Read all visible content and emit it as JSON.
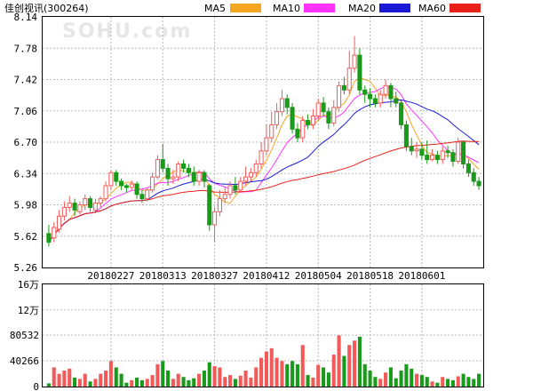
{
  "header": {
    "title": "佳创视讯(300264)",
    "watermark": "SOHU.com",
    "legend": [
      {
        "label": "MA5",
        "color": "#f5a623"
      },
      {
        "label": "MA10",
        "color": "#ff33ff"
      },
      {
        "label": "MA20",
        "color": "#1a1ad6"
      },
      {
        "label": "MA60",
        "color": "#e8211a"
      }
    ]
  },
  "colors": {
    "up": "#f25a5a",
    "down": "#1a9a1a",
    "grid": "#b8b8b8",
    "frame": "#000000"
  },
  "chart_data": {
    "type": "candlestick",
    "price_axis": {
      "ticks": [
        "8.14",
        "7.78",
        "7.42",
        "7.06",
        "6.70",
        "6.34",
        "5.98",
        "5.62",
        "5.26"
      ],
      "ylim": [
        5.26,
        8.14
      ]
    },
    "volume_axis": {
      "ticks": [
        "16万",
        "12万",
        "80532",
        "40266",
        "0"
      ],
      "ylim": [
        0,
        160000
      ]
    },
    "x_labels": [
      "20180227",
      "20180313",
      "20180327",
      "20180412",
      "20180504",
      "20180518",
      "20180601"
    ],
    "x_label_index": [
      12,
      22,
      32,
      42,
      52,
      62,
      72
    ],
    "candles": [
      [
        5.65,
        5.55,
        5.75,
        5.5,
        5000
      ],
      [
        5.6,
        5.72,
        5.78,
        5.55,
        30000
      ],
      [
        5.7,
        5.85,
        5.92,
        5.66,
        20000
      ],
      [
        5.85,
        5.95,
        6.02,
        5.8,
        25000
      ],
      [
        5.95,
        6.0,
        6.08,
        5.9,
        28000
      ],
      [
        6.0,
        5.92,
        6.05,
        5.85,
        14000
      ],
      [
        5.9,
        5.98,
        6.02,
        5.85,
        12000
      ],
      [
        5.98,
        6.05,
        6.1,
        5.92,
        20000
      ],
      [
        6.05,
        5.95,
        6.08,
        5.9,
        8000
      ],
      [
        5.92,
        6.0,
        6.05,
        5.88,
        12000
      ],
      [
        6.0,
        6.05,
        6.08,
        5.95,
        20000
      ],
      [
        6.05,
        6.2,
        6.25,
        6.02,
        25000
      ],
      [
        6.2,
        6.35,
        6.38,
        6.15,
        40000
      ],
      [
        6.35,
        6.25,
        6.38,
        6.2,
        30000
      ],
      [
        6.25,
        6.2,
        6.28,
        6.15,
        20000
      ],
      [
        6.2,
        6.18,
        6.22,
        6.12,
        6000
      ],
      [
        6.18,
        6.22,
        6.26,
        6.15,
        10000
      ],
      [
        6.22,
        6.1,
        6.25,
        6.05,
        14000
      ],
      [
        6.1,
        6.05,
        6.15,
        6.0,
        10000
      ],
      [
        6.05,
        6.15,
        6.18,
        6.02,
        12000
      ],
      [
        6.15,
        6.3,
        6.35,
        6.12,
        18000
      ],
      [
        6.3,
        6.5,
        6.55,
        6.28,
        35000
      ],
      [
        6.5,
        6.4,
        6.68,
        6.35,
        40000
      ],
      [
        6.4,
        6.28,
        6.45,
        6.2,
        25000
      ],
      [
        6.28,
        6.3,
        6.38,
        6.22,
        12000
      ],
      [
        6.3,
        6.45,
        6.48,
        6.25,
        20000
      ],
      [
        6.45,
        6.4,
        6.5,
        6.35,
        15000
      ],
      [
        6.4,
        6.35,
        6.45,
        6.3,
        10000
      ],
      [
        6.35,
        6.25,
        6.42,
        6.2,
        13000
      ],
      [
        6.25,
        6.35,
        6.38,
        6.2,
        20000
      ],
      [
        6.35,
        6.25,
        6.38,
        6.18,
        25000
      ],
      [
        6.2,
        5.75,
        6.22,
        5.68,
        38000
      ],
      [
        5.75,
        5.9,
        5.95,
        5.55,
        32000
      ],
      [
        5.9,
        6.05,
        6.15,
        5.85,
        30000
      ],
      [
        6.05,
        6.1,
        6.18,
        6.0,
        15000
      ],
      [
        6.1,
        6.2,
        6.25,
        6.05,
        18000
      ],
      [
        6.2,
        6.15,
        6.3,
        6.1,
        12000
      ],
      [
        6.15,
        6.25,
        6.3,
        6.12,
        17000
      ],
      [
        6.25,
        6.3,
        6.42,
        6.2,
        25000
      ],
      [
        6.3,
        6.35,
        6.4,
        6.25,
        14000
      ],
      [
        6.35,
        6.45,
        6.5,
        6.3,
        30000
      ],
      [
        6.45,
        6.6,
        6.7,
        6.4,
        45000
      ],
      [
        6.6,
        6.75,
        6.9,
        6.55,
        55000
      ],
      [
        6.75,
        6.9,
        7.05,
        6.7,
        60000
      ],
      [
        6.9,
        7.05,
        7.15,
        6.85,
        45000
      ],
      [
        7.05,
        7.2,
        7.3,
        7.0,
        40000
      ],
      [
        7.2,
        7.1,
        7.25,
        7.02,
        35000
      ],
      [
        7.1,
        6.85,
        7.15,
        6.8,
        40000
      ],
      [
        6.85,
        6.75,
        6.92,
        6.7,
        35000
      ],
      [
        6.75,
        6.95,
        7.0,
        6.7,
        65000
      ],
      [
        6.95,
        6.9,
        7.02,
        6.85,
        18000
      ],
      [
        6.9,
        7.0,
        7.08,
        6.85,
        14000
      ],
      [
        7.0,
        7.15,
        7.2,
        6.95,
        34000
      ],
      [
        7.15,
        7.05,
        7.22,
        7.0,
        30000
      ],
      [
        7.05,
        6.92,
        7.1,
        6.85,
        22000
      ],
      [
        6.92,
        7.1,
        7.18,
        6.88,
        50000
      ],
      [
        7.1,
        7.35,
        7.4,
        7.05,
        80000
      ],
      [
        7.35,
        7.3,
        7.45,
        7.25,
        48000
      ],
      [
        7.3,
        7.55,
        7.75,
        7.25,
        65000
      ],
      [
        7.55,
        7.7,
        7.92,
        7.5,
        72000
      ],
      [
        7.7,
        7.3,
        7.78,
        7.25,
        78000
      ],
      [
        7.3,
        7.25,
        7.35,
        7.15,
        35000
      ],
      [
        7.25,
        7.2,
        7.32,
        7.1,
        25000
      ],
      [
        7.2,
        7.15,
        7.25,
        7.1,
        15000
      ],
      [
        7.15,
        7.25,
        7.3,
        7.1,
        12000
      ],
      [
        7.25,
        7.35,
        7.42,
        7.2,
        22000
      ],
      [
        7.35,
        7.2,
        7.38,
        7.1,
        30000
      ],
      [
        7.2,
        7.15,
        7.28,
        7.1,
        13000
      ],
      [
        7.15,
        6.9,
        7.18,
        6.85,
        25000
      ],
      [
        6.9,
        6.65,
        6.95,
        6.6,
        35000
      ],
      [
        6.65,
        6.6,
        6.75,
        6.55,
        28000
      ],
      [
        6.6,
        6.62,
        6.7,
        6.52,
        20000
      ],
      [
        6.62,
        6.55,
        6.7,
        6.5,
        18000
      ],
      [
        6.55,
        6.5,
        6.72,
        6.45,
        15000
      ],
      [
        6.5,
        6.55,
        6.62,
        6.48,
        8000
      ],
      [
        6.55,
        6.5,
        6.6,
        6.45,
        6000
      ],
      [
        6.5,
        6.6,
        6.65,
        6.45,
        15000
      ],
      [
        6.6,
        6.58,
        6.66,
        6.52,
        12000
      ],
      [
        6.58,
        6.48,
        6.62,
        6.42,
        10000
      ],
      [
        6.48,
        6.7,
        6.75,
        6.45,
        16000
      ],
      [
        6.7,
        6.45,
        6.72,
        6.4,
        20000
      ],
      [
        6.45,
        6.35,
        6.5,
        6.3,
        15000
      ],
      [
        6.35,
        6.25,
        6.4,
        6.2,
        12000
      ],
      [
        6.25,
        6.2,
        6.3,
        6.15,
        20000
      ]
    ]
  }
}
